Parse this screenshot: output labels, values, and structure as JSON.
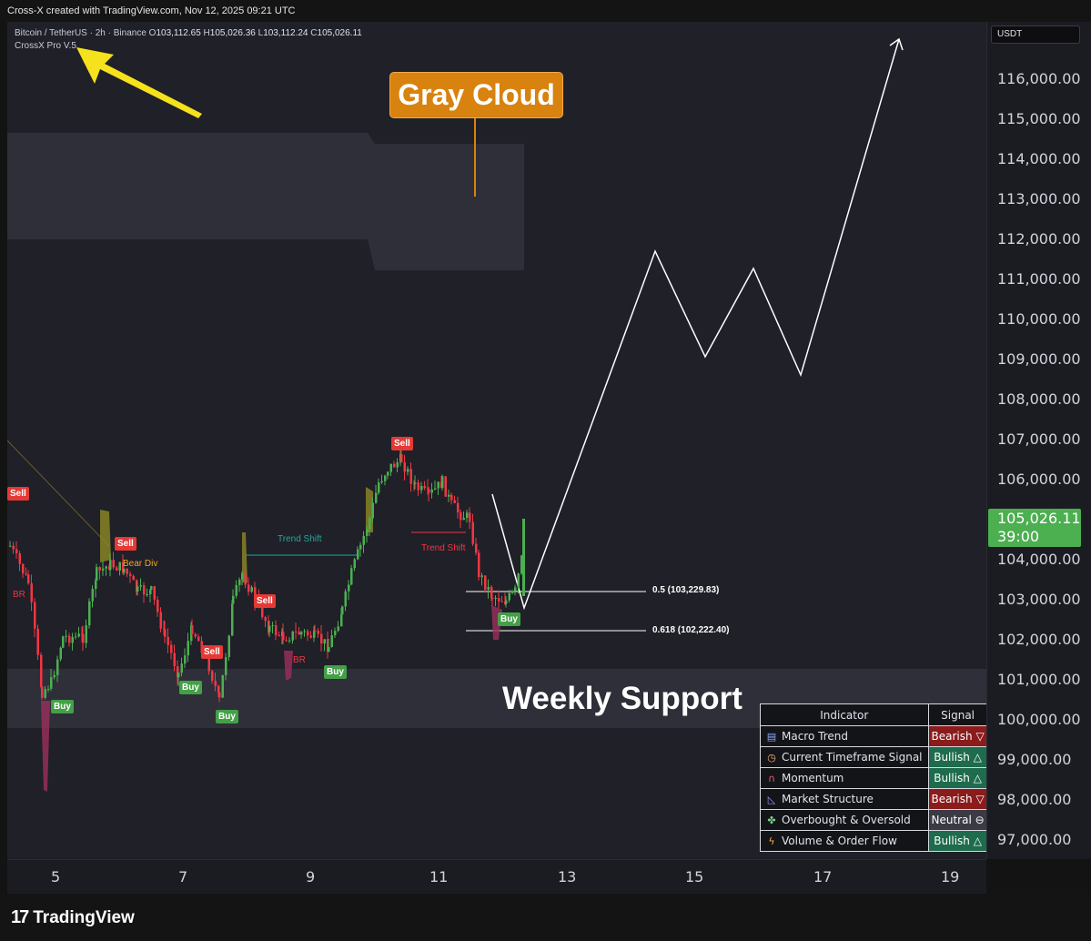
{
  "header": {
    "attribution": "Cross-X created with TradingView.com, Nov 12, 2025 09:21 UTC"
  },
  "legend": {
    "symbol": "Bitcoin / TetherUS · 2h · Binance",
    "open_prefix": "O",
    "open": "103,112.65",
    "high_prefix": "H",
    "high": "105,026.36",
    "low_prefix": "L",
    "low": "103,112.24",
    "close_prefix": "C",
    "close": "105,026.11",
    "indicator": "CrossX Pro V.5"
  },
  "price_axis": {
    "currency": "USDT",
    "labels": [
      "116,000.00",
      "115,000.00",
      "114,000.00",
      "113,000.00",
      "112,000.00",
      "111,000.00",
      "110,000.00",
      "109,000.00",
      "108,000.00",
      "107,000.00",
      "106,000.00",
      "104,000.00",
      "103,000.00",
      "102,000.00",
      "101,000.00",
      "100,000.00",
      "99,000.00",
      "98,000.00",
      "97,000.00"
    ],
    "last_price": "105,026.11",
    "countdown": "39:00"
  },
  "time_axis": {
    "labels": [
      "5",
      "7",
      "9",
      "11",
      "13",
      "15",
      "17",
      "19"
    ]
  },
  "annotations": {
    "gray_cloud": "Gray Cloud",
    "weekly_support": "Weekly Support",
    "fib_05": "0.5 (103,229.83)",
    "fib_0618": "0.618 (102,222.40)",
    "trend_shift_1": "Trend Shift",
    "trend_shift_2": "Trend Shift",
    "bear_div": "Bear Div",
    "br_1": "BR",
    "br_2": "BR"
  },
  "signals": {
    "buy": "Buy",
    "sell": "Sell"
  },
  "indicator_table": {
    "header_indicator": "Indicator",
    "header_signal": "Signal",
    "rows": [
      {
        "name": "Macro Trend",
        "signal": "Bearish ▽",
        "state": "bearish",
        "icon": "chart-icon"
      },
      {
        "name": "Current Timeframe Signal",
        "signal": "Bullish △",
        "state": "bullish",
        "icon": "clock-icon"
      },
      {
        "name": "Momentum",
        "signal": "Bullish △",
        "state": "bullish",
        "icon": "magnet-icon"
      },
      {
        "name": "Market Structure",
        "signal": "Bearish ▽",
        "state": "bearish",
        "icon": "ruler-icon"
      },
      {
        "name": "Overbought & Oversold",
        "signal": "Neutral ⊖",
        "state": "neutral",
        "icon": "puzzle-icon"
      },
      {
        "name": "Volume & Order Flow",
        "signal": "Bullish △",
        "state": "bullish",
        "icon": "bolt-icon"
      }
    ]
  },
  "footer": {
    "brand": "TradingView"
  },
  "colors": {
    "bull": "#4caf50",
    "bear": "#f23645",
    "callout": "#d8820f",
    "arrow": "#f5e11c"
  }
}
